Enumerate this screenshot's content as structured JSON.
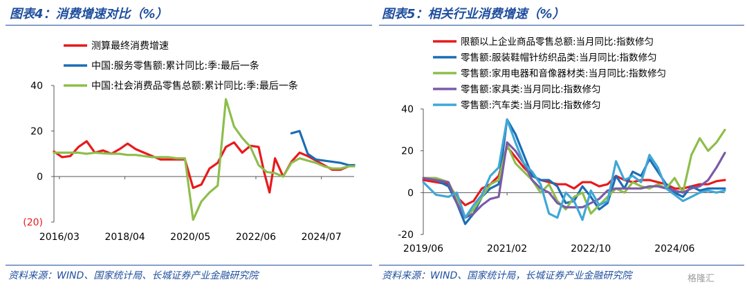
{
  "titles": {
    "left": "图表4：消费增速对比（%）",
    "right": "图表5：相关行业消费增速（%）"
  },
  "sources": {
    "left": "资料来源：WIND、国家统计局、长城证券产业金融研究院",
    "right": "资料来源：WIND、国家统计局，长城证券产业金融研究院"
  },
  "watermark": "格隆汇",
  "chart_data": [
    {
      "type": "line",
      "ylim": [
        -20,
        40
      ],
      "yticks": [
        -20,
        0,
        20,
        40
      ],
      "ytick_labels": [
        "(20)",
        "0",
        "20",
        "40"
      ],
      "ytick_colors": [
        "#e8191c",
        "#000000",
        "#000000",
        "#000000"
      ],
      "xlim": [
        0,
        110
      ],
      "xticks": [
        2,
        26,
        50,
        74,
        98
      ],
      "xtick_labels": [
        "2016/03",
        "2018/04",
        "2020/05",
        "2022/06",
        "2024/07"
      ],
      "legend_position": "top",
      "series": [
        {
          "name": "测算最终消费增速",
          "color": "#e8191c",
          "points": [
            [
              0,
              11
            ],
            [
              3,
              8.5
            ],
            [
              6,
              9
            ],
            [
              9,
              13
            ],
            [
              12,
              15.5
            ],
            [
              15,
              10.5
            ],
            [
              18,
              11.5
            ],
            [
              21,
              10
            ],
            [
              24,
              12
            ],
            [
              27,
              14.5
            ],
            [
              30,
              12
            ],
            [
              33,
              10.5
            ],
            [
              36,
              9
            ],
            [
              39,
              7.5
            ],
            [
              42,
              7.5
            ],
            [
              45,
              7.5
            ],
            [
              48,
              7.5
            ],
            [
              51,
              -5
            ],
            [
              54,
              -3.5
            ],
            [
              57,
              3.5
            ],
            [
              60,
              6
            ],
            [
              63,
              13
            ],
            [
              66,
              15
            ],
            [
              69,
              10.5
            ],
            [
              72,
              13.5
            ],
            [
              75,
              13
            ],
            [
              77,
              2
            ],
            [
              79,
              -7
            ],
            [
              81,
              8
            ],
            [
              84,
              0
            ],
            [
              87,
              6.5
            ],
            [
              90,
              10.5
            ],
            [
              93,
              9
            ],
            [
              96,
              7
            ],
            [
              99,
              5
            ],
            [
              102,
              3
            ],
            [
              105,
              3
            ],
            [
              108,
              4.5
            ],
            [
              110,
              5
            ]
          ]
        },
        {
          "name": "中国:服务零售额:累计同比:季:最后一条",
          "color": "#1a6db5",
          "points": [
            [
              87,
              19
            ],
            [
              90,
              20
            ],
            [
              93,
              10
            ],
            [
              96,
              7.5
            ],
            [
              99,
              7
            ],
            [
              102,
              6.5
            ],
            [
              105,
              6
            ],
            [
              108,
              5
            ],
            [
              110,
              5
            ]
          ]
        },
        {
          "name": "中国:社会消费品零售总额:累计同比:季:最后一条",
          "color": "#8ebd4c",
          "points": [
            [
              0,
              10.5
            ],
            [
              3,
              10.5
            ],
            [
              6,
              10.5
            ],
            [
              9,
              10.5
            ],
            [
              12,
              10
            ],
            [
              15,
              10.5
            ],
            [
              18,
              10.2
            ],
            [
              21,
              10
            ],
            [
              24,
              10
            ],
            [
              27,
              9.5
            ],
            [
              30,
              9.5
            ],
            [
              33,
              9
            ],
            [
              36,
              8.5
            ],
            [
              39,
              8.5
            ],
            [
              42,
              8.5
            ],
            [
              45,
              8
            ],
            [
              48,
              8
            ],
            [
              51,
              -19
            ],
            [
              54,
              -11
            ],
            [
              57,
              -7
            ],
            [
              60,
              -4
            ],
            [
              63,
              34
            ],
            [
              66,
              22
            ],
            [
              69,
              17
            ],
            [
              72,
              13
            ],
            [
              75,
              5
            ],
            [
              78,
              2
            ],
            [
              81,
              1.5
            ],
            [
              84,
              0
            ],
            [
              87,
              6
            ],
            [
              90,
              8
            ],
            [
              93,
              7
            ],
            [
              96,
              6
            ],
            [
              99,
              4.5
            ],
            [
              102,
              3.5
            ],
            [
              105,
              3.5
            ],
            [
              108,
              4.5
            ],
            [
              110,
              4.5
            ]
          ]
        }
      ]
    },
    {
      "type": "line",
      "ylim": [
        -20,
        40
      ],
      "yticks": [
        -20,
        0,
        20,
        40
      ],
      "ytick_labels": [
        "-20",
        "0",
        "20",
        "40"
      ],
      "xlim": [
        0,
        72
      ],
      "xticks": [
        0,
        20,
        40,
        60
      ],
      "xtick_labels": [
        "2019/06",
        "2021/02",
        "2022/10",
        "2024/06"
      ],
      "legend_position": "top",
      "series": [
        {
          "name": "限额以上企业商品零售总额:当月同比:指数修匀",
          "color": "#e8191c",
          "points": [
            [
              0,
              6
            ],
            [
              3,
              5
            ],
            [
              6,
              4
            ],
            [
              8,
              -2
            ],
            [
              10,
              -6
            ],
            [
              12,
              -4
            ],
            [
              14,
              2
            ],
            [
              16,
              4
            ],
            [
              18,
              8
            ],
            [
              20,
              22
            ],
            [
              22,
              17
            ],
            [
              24,
              12
            ],
            [
              26,
              8
            ],
            [
              28,
              6
            ],
            [
              30,
              5
            ],
            [
              32,
              4
            ],
            [
              34,
              4
            ],
            [
              36,
              2
            ],
            [
              38,
              5
            ],
            [
              40,
              5
            ],
            [
              42,
              3
            ],
            [
              44,
              4
            ],
            [
              46,
              8
            ],
            [
              48,
              6
            ],
            [
              50,
              5
            ],
            [
              52,
              6
            ],
            [
              54,
              6
            ],
            [
              56,
              5
            ],
            [
              58,
              4
            ],
            [
              60,
              2
            ],
            [
              62,
              2
            ],
            [
              64,
              3
            ],
            [
              66,
              4
            ],
            [
              68,
              4
            ],
            [
              70,
              5.5
            ],
            [
              72,
              6
            ]
          ]
        },
        {
          "name": "零售额:服装鞋帽针纺织品类:当月同比:指数修匀",
          "color": "#1a6db5",
          "points": [
            [
              0,
              7
            ],
            [
              3,
              6
            ],
            [
              6,
              3
            ],
            [
              8,
              -5
            ],
            [
              10,
              -15
            ],
            [
              12,
              -10
            ],
            [
              14,
              -2
            ],
            [
              16,
              2
            ],
            [
              18,
              4
            ],
            [
              20,
              35
            ],
            [
              22,
              28
            ],
            [
              24,
              18
            ],
            [
              26,
              8
            ],
            [
              28,
              6
            ],
            [
              30,
              6
            ],
            [
              32,
              3
            ],
            [
              34,
              -5
            ],
            [
              36,
              -4
            ],
            [
              38,
              3
            ],
            [
              40,
              -2
            ],
            [
              42,
              -8
            ],
            [
              44,
              -5
            ],
            [
              46,
              8
            ],
            [
              48,
              2
            ],
            [
              50,
              10
            ],
            [
              52,
              8
            ],
            [
              54,
              16
            ],
            [
              56,
              10
            ],
            [
              58,
              4
            ],
            [
              60,
              0
            ],
            [
              62,
              -2
            ],
            [
              64,
              3
            ],
            [
              66,
              1
            ],
            [
              68,
              2
            ],
            [
              70,
              2
            ],
            [
              72,
              2
            ]
          ]
        },
        {
          "name": "零售额:家用电器和音像器材类:当月同比:指数修匀",
          "color": "#8ebd4c",
          "points": [
            [
              0,
              7
            ],
            [
              3,
              7
            ],
            [
              6,
              5
            ],
            [
              8,
              -3
            ],
            [
              10,
              -12
            ],
            [
              12,
              -8
            ],
            [
              14,
              -2
            ],
            [
              16,
              4
            ],
            [
              18,
              6
            ],
            [
              20,
              23
            ],
            [
              22,
              14
            ],
            [
              24,
              10
            ],
            [
              26,
              6
            ],
            [
              28,
              0
            ],
            [
              30,
              4
            ],
            [
              32,
              -4
            ],
            [
              34,
              -8
            ],
            [
              36,
              -2
            ],
            [
              38,
              0
            ],
            [
              40,
              -10
            ],
            [
              42,
              -6
            ],
            [
              44,
              -2
            ],
            [
              46,
              2
            ],
            [
              48,
              0
            ],
            [
              50,
              5
            ],
            [
              52,
              3
            ],
            [
              54,
              2
            ],
            [
              56,
              4
            ],
            [
              58,
              2
            ],
            [
              60,
              7
            ],
            [
              62,
              0
            ],
            [
              64,
              18
            ],
            [
              66,
              26
            ],
            [
              68,
              20
            ],
            [
              70,
              24
            ],
            [
              72,
              30
            ]
          ]
        },
        {
          "name": "零售额:家具类:当月同比:指数修匀",
          "color": "#7b5aa6",
          "points": [
            [
              0,
              7
            ],
            [
              3,
              6
            ],
            [
              6,
              5
            ],
            [
              8,
              -5
            ],
            [
              10,
              -12
            ],
            [
              12,
              -10
            ],
            [
              14,
              -6
            ],
            [
              16,
              -3
            ],
            [
              18,
              -2
            ],
            [
              20,
              24
            ],
            [
              22,
              20
            ],
            [
              24,
              14
            ],
            [
              26,
              6
            ],
            [
              28,
              2
            ],
            [
              30,
              0
            ],
            [
              32,
              -5
            ],
            [
              34,
              -7
            ],
            [
              36,
              -7
            ],
            [
              38,
              -7
            ],
            [
              40,
              -5
            ],
            [
              42,
              -3
            ],
            [
              44,
              1
            ],
            [
              46,
              2
            ],
            [
              48,
              2
            ],
            [
              50,
              2
            ],
            [
              52,
              2
            ],
            [
              54,
              3
            ],
            [
              56,
              3
            ],
            [
              58,
              2
            ],
            [
              60,
              1
            ],
            [
              62,
              0
            ],
            [
              64,
              2
            ],
            [
              66,
              3
            ],
            [
              68,
              6
            ],
            [
              70,
              12
            ],
            [
              72,
              19
            ]
          ]
        },
        {
          "name": "零售额:汽车类:当月同比:指数修匀",
          "color": "#3fa7d6",
          "points": [
            [
              0,
              5
            ],
            [
              3,
              -1
            ],
            [
              6,
              -2
            ],
            [
              8,
              0
            ],
            [
              10,
              -12
            ],
            [
              12,
              -6
            ],
            [
              14,
              -1
            ],
            [
              16,
              8
            ],
            [
              18,
              12
            ],
            [
              20,
              35
            ],
            [
              22,
              24
            ],
            [
              24,
              14
            ],
            [
              26,
              10
            ],
            [
              28,
              4
            ],
            [
              30,
              -10
            ],
            [
              32,
              -12
            ],
            [
              34,
              0
            ],
            [
              36,
              -4
            ],
            [
              38,
              -13
            ],
            [
              40,
              1
            ],
            [
              42,
              -6
            ],
            [
              44,
              -4
            ],
            [
              46,
              15
            ],
            [
              48,
              6
            ],
            [
              50,
              8
            ],
            [
              52,
              5
            ],
            [
              54,
              18
            ],
            [
              56,
              12
            ],
            [
              58,
              2
            ],
            [
              60,
              -1
            ],
            [
              62,
              -4
            ],
            [
              64,
              -2
            ],
            [
              66,
              0
            ],
            [
              68,
              1
            ],
            [
              70,
              0
            ],
            [
              72,
              1
            ]
          ]
        }
      ]
    }
  ]
}
